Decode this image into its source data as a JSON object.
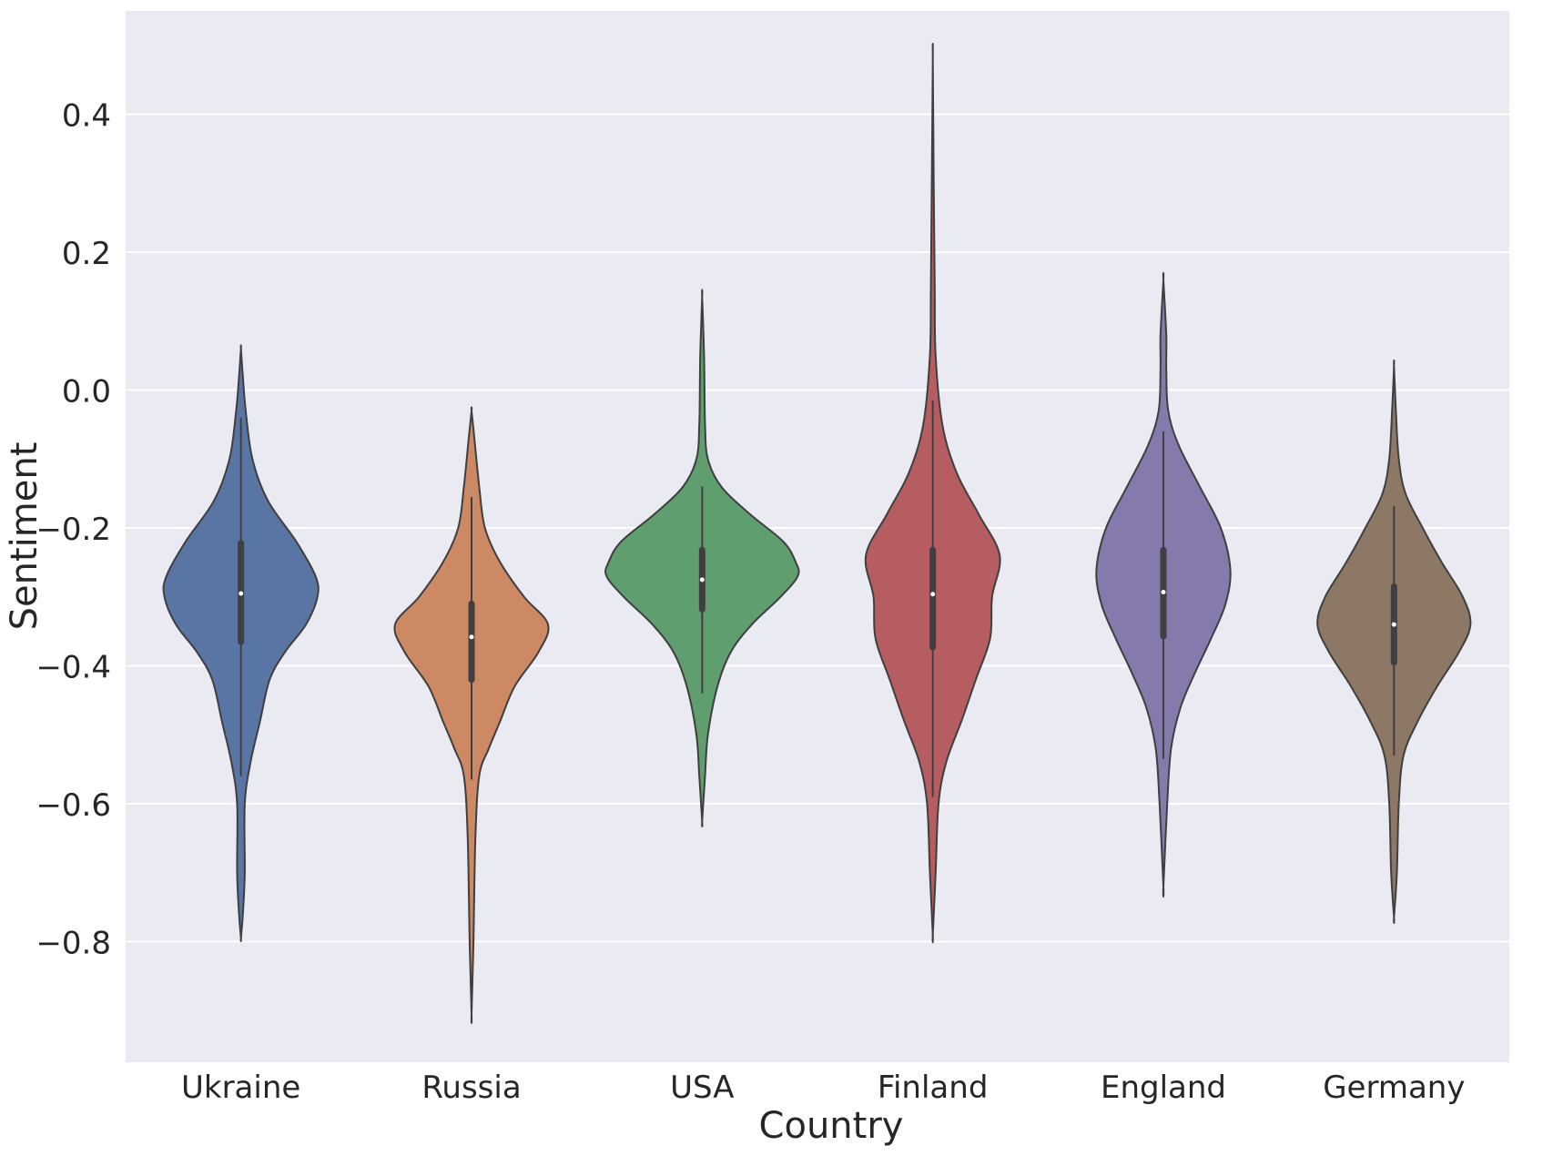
{
  "chart_data": {
    "type": "violin",
    "xlabel": "Country",
    "ylabel": "Sentiment",
    "ylim": [
      -0.975,
      0.55
    ],
    "yticks": [
      0.4,
      0.2,
      0.0,
      -0.2,
      -0.4,
      -0.6,
      -0.8
    ],
    "ytick_labels": [
      "0.4",
      "0.2",
      "0.0",
      "−0.2",
      "−0.4",
      "−0.6",
      "−0.8"
    ],
    "grid": true,
    "background": "#eaeaf2",
    "categories": [
      "Ukraine",
      "Russia",
      "USA",
      "Finland",
      "England",
      "Germany"
    ],
    "series": [
      {
        "category": "Ukraine",
        "color": "#5975a4",
        "min": -0.795,
        "max": 0.06,
        "whisker_low": -0.56,
        "whisker_high": -0.04,
        "q1": -0.365,
        "median": -0.295,
        "q3": -0.222,
        "density": [
          [
            0.06,
            0.0
          ],
          [
            0.02,
            0.02
          ],
          [
            -0.03,
            0.05
          ],
          [
            -0.1,
            0.12
          ],
          [
            -0.16,
            0.28
          ],
          [
            -0.22,
            0.58
          ],
          [
            -0.27,
            0.78
          ],
          [
            -0.3,
            0.8
          ],
          [
            -0.34,
            0.68
          ],
          [
            -0.38,
            0.46
          ],
          [
            -0.42,
            0.3
          ],
          [
            -0.48,
            0.2
          ],
          [
            -0.54,
            0.1
          ],
          [
            -0.6,
            0.04
          ],
          [
            -0.7,
            0.04
          ],
          [
            -0.76,
            0.02
          ],
          [
            -0.795,
            0.0
          ]
        ]
      },
      {
        "category": "Russia",
        "color": "#cc8963",
        "min": -0.905,
        "max": -0.03,
        "whisker_low": -0.565,
        "whisker_high": -0.155,
        "q1": -0.42,
        "median": -0.358,
        "q3": -0.31,
        "density": [
          [
            -0.03,
            0.0
          ],
          [
            -0.07,
            0.03
          ],
          [
            -0.14,
            0.08
          ],
          [
            -0.2,
            0.14
          ],
          [
            -0.25,
            0.3
          ],
          [
            -0.3,
            0.55
          ],
          [
            -0.34,
            0.8
          ],
          [
            -0.38,
            0.7
          ],
          [
            -0.43,
            0.45
          ],
          [
            -0.48,
            0.3
          ],
          [
            -0.52,
            0.18
          ],
          [
            -0.56,
            0.08
          ],
          [
            -0.65,
            0.04
          ],
          [
            -0.8,
            0.02
          ],
          [
            -0.905,
            0.0
          ]
        ]
      },
      {
        "category": "USA",
        "color": "#5f9e6e",
        "min": -0.625,
        "max": 0.135,
        "whisker_low": -0.44,
        "whisker_high": -0.14,
        "q1": -0.318,
        "median": -0.275,
        "q3": -0.232,
        "density": [
          [
            0.135,
            0.0
          ],
          [
            0.05,
            0.02
          ],
          [
            -0.05,
            0.03
          ],
          [
            -0.1,
            0.06
          ],
          [
            -0.14,
            0.2
          ],
          [
            -0.18,
            0.5
          ],
          [
            -0.22,
            0.85
          ],
          [
            -0.25,
            0.98
          ],
          [
            -0.27,
            1.0
          ],
          [
            -0.3,
            0.82
          ],
          [
            -0.34,
            0.52
          ],
          [
            -0.38,
            0.3
          ],
          [
            -0.43,
            0.16
          ],
          [
            -0.5,
            0.06
          ],
          [
            -0.56,
            0.03
          ],
          [
            -0.625,
            0.0
          ]
        ]
      },
      {
        "category": "Finland",
        "color": "#b55d60",
        "min": -0.79,
        "max": 0.48,
        "whisker_low": -0.59,
        "whisker_high": -0.015,
        "q1": -0.373,
        "median": -0.296,
        "q3": -0.232,
        "density": [
          [
            0.48,
            0.0
          ],
          [
            0.3,
            0.01
          ],
          [
            0.15,
            0.02
          ],
          [
            0.05,
            0.03
          ],
          [
            -0.05,
            0.1
          ],
          [
            -0.12,
            0.25
          ],
          [
            -0.18,
            0.48
          ],
          [
            -0.24,
            0.7
          ],
          [
            -0.3,
            0.62
          ],
          [
            -0.36,
            0.6
          ],
          [
            -0.42,
            0.45
          ],
          [
            -0.48,
            0.3
          ],
          [
            -0.54,
            0.14
          ],
          [
            -0.6,
            0.06
          ],
          [
            -0.7,
            0.03
          ],
          [
            -0.79,
            0.0
          ]
        ]
      },
      {
        "category": "England",
        "color": "#857aab",
        "min": -0.72,
        "max": 0.16,
        "whisker_low": -0.535,
        "whisker_high": -0.06,
        "q1": -0.357,
        "median": -0.293,
        "q3": -0.232,
        "density": [
          [
            0.16,
            0.0
          ],
          [
            0.08,
            0.03
          ],
          [
            0.03,
            0.03
          ],
          [
            -0.03,
            0.05
          ],
          [
            -0.08,
            0.16
          ],
          [
            -0.14,
            0.38
          ],
          [
            -0.2,
            0.6
          ],
          [
            -0.26,
            0.7
          ],
          [
            -0.31,
            0.65
          ],
          [
            -0.36,
            0.5
          ],
          [
            -0.41,
            0.33
          ],
          [
            -0.46,
            0.18
          ],
          [
            -0.52,
            0.08
          ],
          [
            -0.6,
            0.04
          ],
          [
            -0.72,
            0.0
          ]
        ]
      },
      {
        "category": "Germany",
        "color": "#8d7866",
        "min": -0.765,
        "max": 0.035,
        "whisker_low": -0.53,
        "whisker_high": -0.168,
        "q1": -0.395,
        "median": -0.34,
        "q3": -0.285,
        "density": [
          [
            0.035,
            0.0
          ],
          [
            -0.03,
            0.02
          ],
          [
            -0.1,
            0.05
          ],
          [
            -0.15,
            0.12
          ],
          [
            -0.2,
            0.3
          ],
          [
            -0.25,
            0.5
          ],
          [
            -0.3,
            0.72
          ],
          [
            -0.34,
            0.8
          ],
          [
            -0.38,
            0.68
          ],
          [
            -0.43,
            0.45
          ],
          [
            -0.48,
            0.25
          ],
          [
            -0.53,
            0.1
          ],
          [
            -0.6,
            0.05
          ],
          [
            -0.7,
            0.03
          ],
          [
            -0.765,
            0.0
          ]
        ]
      }
    ]
  }
}
